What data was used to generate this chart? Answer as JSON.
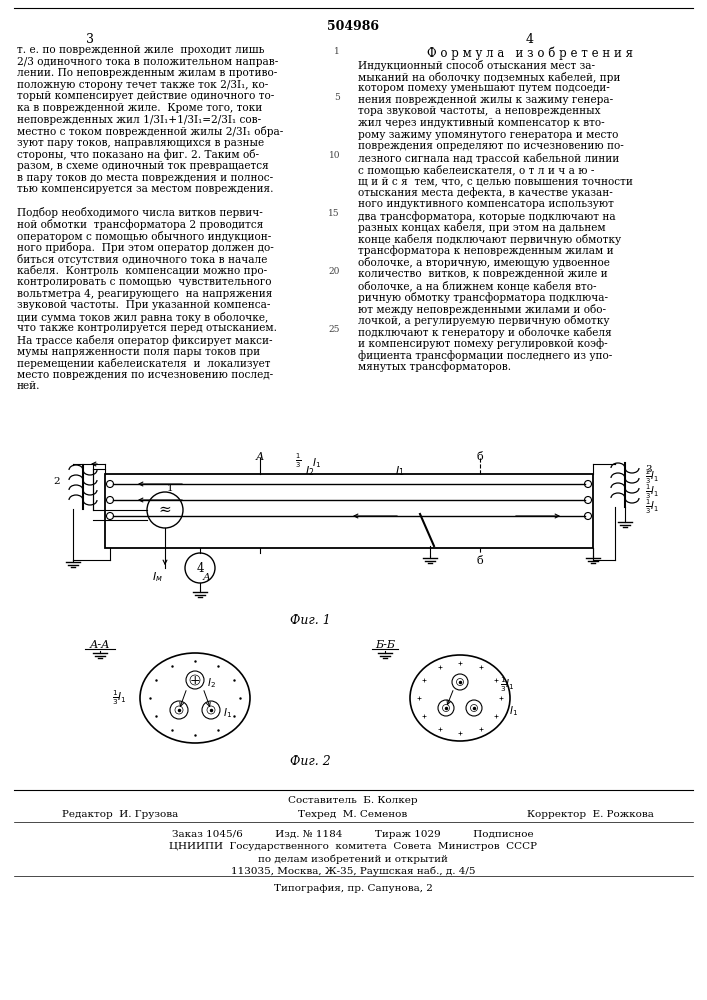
{
  "patent_number": "504986",
  "page_left": "3",
  "page_right": "4",
  "background_color": "#ffffff",
  "text_color": "#000000",
  "left_column_text": [
    "т. е. по поврежденной жиле  проходит лишь",
    "2/3 одиночного тока в положительном направ-",
    "лении. По неповрежденным жилам в противо-",
    "положную сторону течет также ток 2/3I₁, ко-",
    "торый компенсирует действие одиночного то-",
    "ка в поврежденной жиле.  Кроме того, токи",
    "неповрежденных жил 1/3I₁+1/3I₁=2/3I₁ сов-",
    "местно с током поврежденной жилы 2/3I₁ обра-",
    "зуют пару токов, направляющихся в разные",
    "стороны, что показано на фиг. 2. Таким об-",
    "разом, в схеме одиночный ток превращается",
    "в пару токов до места повреждения и полнос-",
    "тью компенсируется за местом повреждения.",
    "",
    "Подбор необходимого числа витков первич-",
    "ной обмотки  трансформатора 2 проводится",
    "оператором с помощью обычного индукцион-",
    "ного прибора.  При этом оператор должен до-",
    "биться отсутствия одиночного тока в начале",
    "кабеля.  Контроль  компенсации можно про-",
    "контролировать с помощью  чувствительного",
    "вольтметра 4, реагирующего  на напряжения",
    "звуковой частоты.  При указанной компенса-",
    "ции сумма токов жил равна току в оболочке,",
    "что также контролируется перед отысканием.",
    "На трассе кабеля оператор фиксирует макси-",
    "мумы напряженности поля пары токов при",
    "перемещении кабелеискателя  и  локализует",
    "место повреждения по исчезновению послед-",
    "ней."
  ],
  "right_header": "Ф о р м у л а   и з о б р е т е н и я",
  "right_column_text": [
    "Индукционный способ отыскания мест за-",
    "мыканий на оболочку подземных кабелей, при",
    "котором помеху уменьшают путем подсоеди-",
    "нения поврежденной жилы к зажиму генера-",
    "тора звуковой частоты,  а неповрежденных",
    "жил через индуктивный компенсатор к вто-",
    "рому зажиму упомянутого генератора и место",
    "повреждения определяют по исчезновению по-",
    "лезного сигнала над трассой кабельной линии",
    "с помощью кабелеискателя, о т л и ч а ю -",
    "щ и й с я  тем, что, с целью повышения точности",
    "отыскания места дефекта, в качестве указан-",
    "ного индуктивного компенсатора используют",
    "два трансформатора, которые подключают на",
    "разных концах кабеля, при этом на дальнем",
    "конце кабеля подключают первичную обмотку",
    "трансформатора к неповрежденным жилам и",
    "оболочке, а вторичную, имеющую удвоенное",
    "количество  витков, к поврежденной жиле и",
    "оболочке, а на ближнем конце кабеля вто-",
    "ричную обмотку трансформатора подключа-",
    "ют между неповрежденными жилами и обо-",
    "лочкой, а регулируемую первичную обмотку",
    "подключают к генератору и оболочке кабеля",
    "и компенсируют помеху регулировкой коэф-",
    "фициента трансформации последнего из упо-",
    "мянутых трансформаторов."
  ],
  "sestavitel_line": "Составитель  Б. Колкер",
  "editor_line1": "Редактор  И. Грузова",
  "editor_line2": "Техред  М. Семенов",
  "editor_line3": "Корректор  Е. Рожкова",
  "order_line": "Заказ 1045/6          Изд. № 1184          Тираж 1029          Подписное",
  "org_line1": "ЦНИИПИ  Государственного  комитета  Совета  Министров  СССР",
  "org_line2": "по делам изобретений и открытий",
  "org_line3": "113035, Москва, Ж-35, Раушская наб., д. 4/5",
  "typo_line": "Типография, пр. Сапунова, 2"
}
